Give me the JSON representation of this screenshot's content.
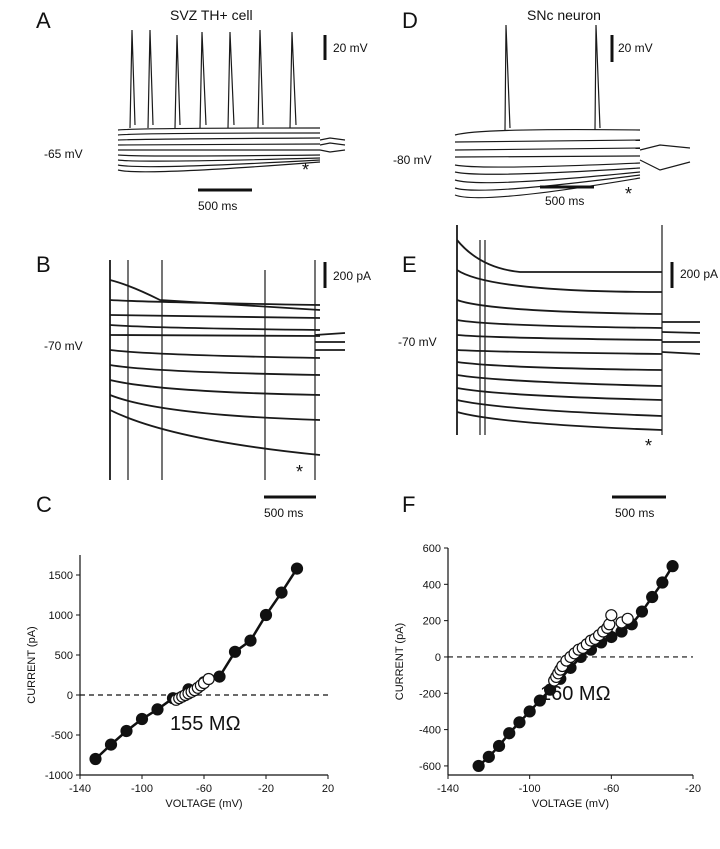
{
  "panels": {
    "A": {
      "label": "A",
      "title": "SVZ TH+ cell",
      "voltage_scale": "20 mV",
      "time_scale": "500 ms",
      "holding": "-65 mV",
      "marker": "*"
    },
    "B": {
      "label": "B",
      "current_scale": "200 pA",
      "holding": "-70 mV",
      "marker": "*"
    },
    "C": {
      "label": "C"
    },
    "D": {
      "label": "D",
      "title": "SNc neuron",
      "voltage_scale": "20 mV",
      "time_scale": "500 ms",
      "holding": "-80 mV",
      "marker": "*"
    },
    "E": {
      "label": "E",
      "current_scale": "200 pA",
      "holding": "-70 mV",
      "marker": "*",
      "time_scale": "500 ms"
    },
    "F": {
      "label": "F"
    }
  },
  "chart_data": [
    {
      "panel": "C",
      "type": "scatter",
      "xlabel": "VOLTAGE (mV)",
      "ylabel": "CURRENT (pA)",
      "xlim": [
        -140,
        20
      ],
      "ylim": [
        -1000,
        1750
      ],
      "xticks": [
        -140,
        -100,
        -60,
        -20,
        20
      ],
      "yticks": [
        -1000,
        -500,
        0,
        500,
        1000,
        1500
      ],
      "annotation": "155 MΩ",
      "zero_line": "dashed",
      "series": [
        {
          "marker": "filled",
          "x": [
            -130,
            -120,
            -110,
            -100,
            -90,
            -80,
            -70,
            -60,
            -50,
            -40,
            -30,
            -20,
            -10,
            0
          ],
          "y": [
            -800,
            -620,
            -450,
            -300,
            -180,
            -40,
            70,
            160,
            230,
            540,
            680,
            1000,
            1280,
            1580
          ]
        },
        {
          "marker": "open",
          "x": [
            -78,
            -76,
            -74,
            -72,
            -70,
            -68,
            -66,
            -64,
            -62,
            -60,
            -57
          ],
          "y": [
            -60,
            -40,
            -20,
            0,
            20,
            40,
            60,
            90,
            120,
            150,
            200
          ]
        }
      ]
    },
    {
      "panel": "F",
      "type": "scatter",
      "xlabel": "VOLTAGE (mV)",
      "ylabel": "CURRENT (pA)",
      "xlim": [
        -140,
        -20
      ],
      "ylim": [
        -650,
        600
      ],
      "xticks": [
        -140,
        -100,
        -60,
        -20
      ],
      "yticks": [
        -600,
        -400,
        -200,
        0,
        200,
        400,
        600
      ],
      "annotation": "160 MΩ",
      "zero_line": "dashed",
      "series": [
        {
          "marker": "filled",
          "x": [
            -125,
            -120,
            -115,
            -110,
            -105,
            -100,
            -95,
            -90,
            -85,
            -80,
            -75,
            -70,
            -65,
            -60,
            -55,
            -50,
            -45,
            -40,
            -35,
            -30
          ],
          "y": [
            -600,
            -550,
            -490,
            -420,
            -360,
            -300,
            -240,
            -180,
            -120,
            -60,
            0,
            40,
            80,
            110,
            140,
            180,
            250,
            330,
            410,
            500
          ]
        },
        {
          "marker": "open",
          "x": [
            -88,
            -87,
            -86,
            -85,
            -84,
            -82,
            -80,
            -78,
            -76,
            -74,
            -72,
            -70,
            -68,
            -66,
            -64,
            -62,
            -61,
            -60,
            -55,
            -52
          ],
          "y": [
            -130,
            -110,
            -90,
            -70,
            -50,
            -20,
            0,
            20,
            40,
            50,
            70,
            90,
            100,
            120,
            140,
            160,
            180,
            230,
            190,
            210
          ]
        }
      ]
    }
  ]
}
